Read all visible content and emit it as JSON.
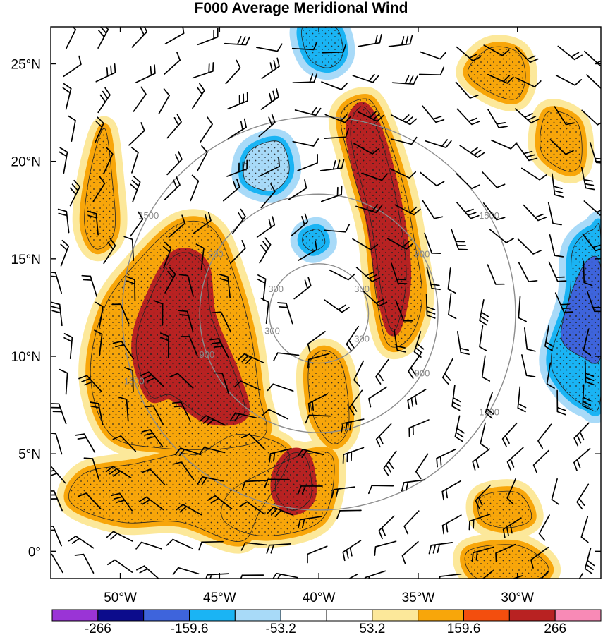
{
  "chart_data": {
    "type": "heatmap",
    "title": "F000 Average Meridional Wind",
    "y_ticks": [
      {
        "label": "0°",
        "lat": 0
      },
      {
        "label": "5°N",
        "lat": 5
      },
      {
        "label": "10°N",
        "lat": 10
      },
      {
        "label": "15°N",
        "lat": 15
      },
      {
        "label": "20°N",
        "lat": 20
      },
      {
        "label": "25°N",
        "lat": 25
      }
    ],
    "x_ticks": [
      {
        "label": "50°W",
        "lon": -50
      },
      {
        "label": "45°W",
        "lon": -45
      },
      {
        "label": "40°W",
        "lon": -40
      },
      {
        "label": "35°W",
        "lon": -35
      },
      {
        "label": "30°W",
        "lon": -30
      }
    ],
    "xlim": [
      -53.5,
      -25.8
    ],
    "ylim": [
      -1.4,
      26.9
    ],
    "storm_center": {
      "lon": -40.0,
      "lat": 12.2
    },
    "range_rings": [
      {
        "value": 300,
        "label": "300",
        "radius_deg": 2.5
      },
      {
        "value": 900,
        "label": "900",
        "radius_deg": 6.0
      },
      {
        "value": 1500,
        "label": "1500",
        "radius_deg": 9.9
      }
    ],
    "colorbar": {
      "levels": [
        -319.2,
        -266,
        -212.8,
        -159.6,
        -106.4,
        -53.2,
        0,
        53.2,
        106.4,
        159.6,
        212.8,
        266,
        319.2
      ],
      "colors": [
        "#9a34d6",
        "#0c0c8c",
        "#3e64dc",
        "#1ab4f4",
        "#a8daf8",
        "#ffffff",
        "#ffffff",
        "#fce89a",
        "#f8a60a",
        "#f34e0e",
        "#b82222",
        "#f88ab6"
      ],
      "tick_labels": [
        {
          "label": "-266",
          "value": -266
        },
        {
          "label": "-159.6",
          "value": -159.6
        },
        {
          "label": "-53.2",
          "value": -53.2
        },
        {
          "label": "53.2",
          "value": 53.2
        },
        {
          "label": "159.6",
          "value": 159.6
        },
        {
          "label": "266",
          "value": 266
        }
      ]
    },
    "field_features": [
      {
        "name": "western-positive-band",
        "value": 150,
        "points": [
          [
            -51.8,
            4
          ],
          [
            -49.2,
            4.5
          ],
          [
            -47,
            5
          ],
          [
            -46,
            5
          ],
          [
            -44,
            6
          ],
          [
            -41.5,
            5
          ],
          [
            -43,
            2
          ],
          [
            -44,
            0.5
          ],
          [
            -47,
            1.5
          ],
          [
            -50,
            1.5
          ],
          [
            -52.5,
            2.5
          ]
        ]
      },
      {
        "name": "western-positive-core",
        "value": 220,
        "points": [
          [
            -48.5,
            8
          ],
          [
            -49.2,
            10.5
          ],
          [
            -48.5,
            13
          ],
          [
            -47.2,
            15.2
          ],
          [
            -45.8,
            14.7
          ],
          [
            -45.4,
            12
          ],
          [
            -44.2,
            9
          ],
          [
            -43.8,
            7
          ],
          [
            -45.6,
            6.8
          ],
          [
            -47.4,
            8
          ]
        ]
      },
      {
        "name": "western-positive-ridge",
        "value": 140,
        "points": [
          [
            -50.5,
            6
          ],
          [
            -51.5,
            9
          ],
          [
            -50.8,
            12.5
          ],
          [
            -49,
            15
          ],
          [
            -47,
            16.8
          ],
          [
            -45.3,
            16.5
          ],
          [
            -44.2,
            14
          ],
          [
            -43.4,
            11
          ],
          [
            -43,
            8
          ],
          [
            -42.7,
            6
          ],
          [
            -44.5,
            5.3
          ],
          [
            -48,
            5.3
          ]
        ]
      },
      {
        "name": "northwest-positive-strip",
        "value": 140,
        "points": [
          [
            -51.8,
            16.8
          ],
          [
            -51.5,
            19.5
          ],
          [
            -50.8,
            21.7
          ],
          [
            -50.4,
            19
          ],
          [
            -50.3,
            16.4
          ],
          [
            -51.2,
            15.5
          ]
        ]
      },
      {
        "name": "south-central-positive",
        "value": 150,
        "points": [
          [
            -44.5,
            3
          ],
          [
            -42.5,
            4.2
          ],
          [
            -40.6,
            5
          ],
          [
            -39.3,
            4.8
          ],
          [
            -39.5,
            2.3
          ],
          [
            -40.5,
            1.2
          ],
          [
            -43,
            0.8
          ],
          [
            -44.8,
            1.6
          ]
        ]
      },
      {
        "name": "south-central-core",
        "value": 220,
        "points": [
          [
            -42.1,
            4
          ],
          [
            -41.4,
            5
          ],
          [
            -40.6,
            4.7
          ],
          [
            -40.4,
            2.8
          ],
          [
            -41.3,
            2.1
          ],
          [
            -42.1,
            2.8
          ]
        ]
      },
      {
        "name": "central-positive-spur",
        "value": 140,
        "points": [
          [
            -40.3,
            7
          ],
          [
            -40.5,
            9.5
          ],
          [
            -39.7,
            10.3
          ],
          [
            -38.8,
            9.4
          ],
          [
            -38.5,
            6.5
          ],
          [
            -39.3,
            5.5
          ]
        ]
      },
      {
        "name": "northeast-band",
        "value": 140,
        "points": [
          [
            -37.8,
            23.2
          ],
          [
            -37,
            22.5
          ],
          [
            -35.8,
            19
          ],
          [
            -35.2,
            16
          ],
          [
            -34.8,
            13
          ],
          [
            -35.4,
            11
          ],
          [
            -36.5,
            10.6
          ],
          [
            -37.1,
            13
          ],
          [
            -37.5,
            16.5
          ],
          [
            -38.3,
            19.5
          ],
          [
            -38.9,
            22.3
          ]
        ]
      },
      {
        "name": "northeast-core",
        "value": 220,
        "points": [
          [
            -37.8,
            22.8
          ],
          [
            -36.9,
            21.2
          ],
          [
            -36,
            17.5
          ],
          [
            -35.6,
            14
          ],
          [
            -36.2,
            11.3
          ],
          [
            -36.8,
            13
          ],
          [
            -37.4,
            17
          ],
          [
            -38.4,
            21.3
          ]
        ]
      },
      {
        "name": "top-right-positive",
        "value": 150,
        "points": [
          [
            -31.4,
            25.8
          ],
          [
            -30,
            25.6
          ],
          [
            -29.6,
            24.3
          ],
          [
            -30.1,
            23.2
          ],
          [
            -31.5,
            23.6
          ],
          [
            -32.5,
            24.6
          ]
        ]
      },
      {
        "name": "right-edge-positive",
        "value": 140,
        "points": [
          [
            -28.5,
            22.5
          ],
          [
            -27,
            22
          ],
          [
            -26.8,
            20
          ],
          [
            -27.5,
            19.5
          ],
          [
            -28.8,
            20.5
          ]
        ]
      },
      {
        "name": "southeast-positive",
        "value": 140,
        "points": [
          [
            -31.8,
            2.8
          ],
          [
            -30,
            3
          ],
          [
            -29.3,
            1.7
          ],
          [
            -30.5,
            1.2
          ],
          [
            -31.8,
            1.6
          ]
        ]
      },
      {
        "name": "bottom-right-positive",
        "value": 150,
        "points": [
          [
            -32.5,
            0
          ],
          [
            -30,
            0.3
          ],
          [
            -28.5,
            -0.7
          ],
          [
            -29,
            -1.4
          ],
          [
            -32,
            -1.4
          ]
        ]
      },
      {
        "name": "east-negative-region",
        "value": -130,
        "points": [
          [
            -28.3,
            10
          ],
          [
            -27.4,
            13
          ],
          [
            -27.2,
            15.5
          ],
          [
            -26.2,
            16.5
          ],
          [
            -25.8,
            16
          ],
          [
            -25.8,
            8
          ],
          [
            -26.6,
            7.5
          ],
          [
            -27.8,
            8.5
          ]
        ]
      },
      {
        "name": "east-negative-core",
        "value": -180,
        "points": [
          [
            -27.8,
            11
          ],
          [
            -27.2,
            13.5
          ],
          [
            -26.4,
            15
          ],
          [
            -25.8,
            14.5
          ],
          [
            -25.8,
            10
          ],
          [
            -26.8,
            10
          ]
        ]
      },
      {
        "name": "north-negative-patch",
        "value": -130,
        "points": [
          [
            -40.8,
            26.9
          ],
          [
            -39.2,
            26.9
          ],
          [
            -38.8,
            25.5
          ],
          [
            -39.5,
            24.8
          ],
          [
            -40.5,
            25.3
          ]
        ]
      },
      {
        "name": "northwest-negative-patch",
        "value": -90,
        "points": [
          [
            -43.5,
            20.5
          ],
          [
            -42,
            21
          ],
          [
            -41.5,
            19.5
          ],
          [
            -42.3,
            18.5
          ],
          [
            -43.7,
            19
          ]
        ]
      },
      {
        "name": "center-negative-patch",
        "value": -130,
        "points": [
          [
            -40.7,
            16.3
          ],
          [
            -40,
            16.5
          ],
          [
            -39.7,
            15.8
          ],
          [
            -40.3,
            15.4
          ],
          [
            -40.8,
            15.8
          ]
        ]
      }
    ]
  }
}
